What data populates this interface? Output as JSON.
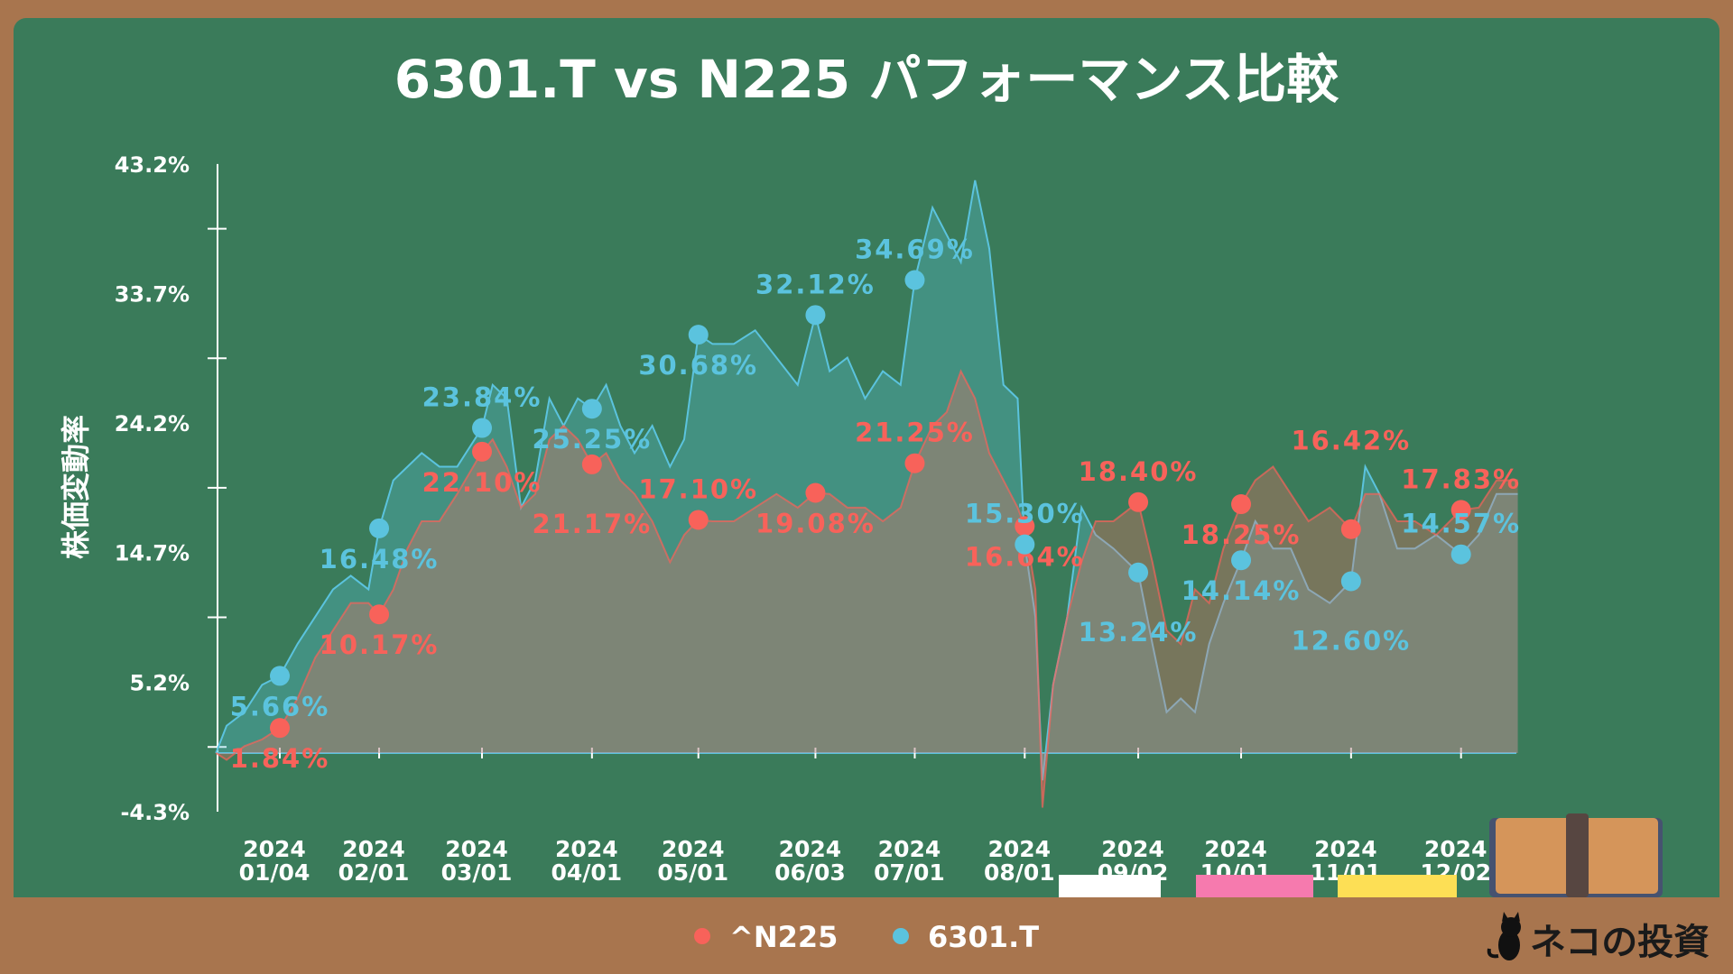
{
  "chart_data": {
    "type": "area",
    "title": "6301.T vs N225 パフォーマンス比較",
    "ylabel": "株価変動率",
    "xlabel": "",
    "ylim": [
      -4.3,
      43.2
    ],
    "y_ticks": [
      "43.2%",
      "33.7%",
      "24.2%",
      "14.7%",
      "5.2%",
      "-4.3%"
    ],
    "y_tick_values": [
      43.2,
      33.7,
      24.2,
      14.7,
      5.2,
      -4.3
    ],
    "x_ticks": [
      {
        "day": 0,
        "year": "2024",
        "md": "01/04"
      },
      {
        "day": 28,
        "year": "2024",
        "md": "02/01"
      },
      {
        "day": 57,
        "year": "2024",
        "md": "03/01"
      },
      {
        "day": 88,
        "year": "2024",
        "md": "04/01"
      },
      {
        "day": 118,
        "year": "2024",
        "md": "05/01"
      },
      {
        "day": 151,
        "year": "2024",
        "md": "06/03"
      },
      {
        "day": 179,
        "year": "2024",
        "md": "07/01"
      },
      {
        "day": 210,
        "year": "2024",
        "md": "08/01"
      },
      {
        "day": 242,
        "year": "2024",
        "md": "09/02"
      },
      {
        "day": 271,
        "year": "2024",
        "md": "10/01"
      },
      {
        "day": 302,
        "year": "2024",
        "md": "11/01"
      },
      {
        "day": 333,
        "year": "2024",
        "md": "12/02"
      }
    ],
    "x_unit": "days since 2024/01/04",
    "legend_position": "bottom",
    "series": [
      {
        "name": "^N225",
        "color": "#F8625A",
        "markers": [
          1.84,
          10.17,
          22.1,
          21.17,
          17.1,
          19.08,
          21.25,
          16.64,
          18.4,
          18.25,
          16.42,
          17.83
        ],
        "marker_labels": [
          "1.84%",
          "10.17%",
          "22.10%",
          "21.17%",
          "17.10%",
          "19.08%",
          "21.25%",
          "16.64%",
          "18.40%",
          "18.25%",
          "16.42%",
          "17.83%"
        ],
        "points": [
          [
            -18,
            0
          ],
          [
            -15,
            -0.5
          ],
          [
            -10,
            0.5
          ],
          [
            -5,
            1
          ],
          [
            0,
            1.84
          ],
          [
            5,
            4
          ],
          [
            10,
            7
          ],
          [
            15,
            9
          ],
          [
            20,
            11
          ],
          [
            25,
            11
          ],
          [
            28,
            10.17
          ],
          [
            32,
            12
          ],
          [
            36,
            15
          ],
          [
            40,
            17
          ],
          [
            45,
            17
          ],
          [
            50,
            19
          ],
          [
            57,
            22.1
          ],
          [
            60,
            23
          ],
          [
            64,
            21
          ],
          [
            68,
            18
          ],
          [
            72,
            19
          ],
          [
            76,
            23
          ],
          [
            80,
            24
          ],
          [
            84,
            23
          ],
          [
            88,
            21.17
          ],
          [
            92,
            22
          ],
          [
            96,
            20
          ],
          [
            100,
            19
          ],
          [
            105,
            17
          ],
          [
            110,
            14
          ],
          [
            114,
            16
          ],
          [
            118,
            17.1
          ],
          [
            122,
            17
          ],
          [
            128,
            17
          ],
          [
            134,
            18
          ],
          [
            140,
            19
          ],
          [
            146,
            18
          ],
          [
            151,
            19.08
          ],
          [
            155,
            19
          ],
          [
            160,
            18
          ],
          [
            165,
            18
          ],
          [
            170,
            17
          ],
          [
            175,
            18
          ],
          [
            179,
            21.25
          ],
          [
            184,
            24
          ],
          [
            188,
            25
          ],
          [
            192,
            28
          ],
          [
            196,
            26
          ],
          [
            200,
            22
          ],
          [
            204,
            20
          ],
          [
            208,
            18
          ],
          [
            210,
            16.64
          ],
          [
            213,
            12
          ],
          [
            215,
            -4
          ],
          [
            218,
            5
          ],
          [
            222,
            10
          ],
          [
            226,
            14
          ],
          [
            230,
            17
          ],
          [
            235,
            17
          ],
          [
            242,
            18.4
          ],
          [
            246,
            14
          ],
          [
            250,
            9
          ],
          [
            254,
            8
          ],
          [
            258,
            12
          ],
          [
            262,
            11
          ],
          [
            266,
            15
          ],
          [
            271,
            18.25
          ],
          [
            275,
            20
          ],
          [
            280,
            21
          ],
          [
            285,
            19
          ],
          [
            290,
            17
          ],
          [
            296,
            18
          ],
          [
            302,
            16.42
          ],
          [
            306,
            19
          ],
          [
            310,
            19
          ],
          [
            315,
            17
          ],
          [
            320,
            17
          ],
          [
            326,
            16
          ],
          [
            333,
            17.83
          ],
          [
            338,
            18
          ],
          [
            343,
            20
          ],
          [
            349,
            20
          ]
        ]
      },
      {
        "name": "6301.T",
        "color": "#5BC3DE",
        "markers": [
          5.66,
          16.48,
          23.84,
          25.25,
          30.68,
          32.12,
          34.69,
          15.3,
          13.24,
          14.14,
          12.6,
          14.57
        ],
        "marker_labels": [
          "5.66%",
          "16.48%",
          "23.84%",
          "25.25%",
          "30.68%",
          "32.12%",
          "34.69%",
          "15.30%",
          "13.24%",
          "14.14%",
          "12.60%",
          "14.57%"
        ],
        "points": [
          [
            -18,
            0
          ],
          [
            -15,
            2
          ],
          [
            -10,
            3
          ],
          [
            -5,
            5
          ],
          [
            0,
            5.66
          ],
          [
            5,
            8
          ],
          [
            10,
            10
          ],
          [
            15,
            12
          ],
          [
            20,
            13
          ],
          [
            25,
            12
          ],
          [
            28,
            16.48
          ],
          [
            32,
            20
          ],
          [
            36,
            21
          ],
          [
            40,
            22
          ],
          [
            45,
            21
          ],
          [
            50,
            21
          ],
          [
            57,
            23.84
          ],
          [
            60,
            27
          ],
          [
            64,
            26
          ],
          [
            68,
            18
          ],
          [
            72,
            20
          ],
          [
            76,
            26
          ],
          [
            80,
            24
          ],
          [
            84,
            26
          ],
          [
            88,
            25.25
          ],
          [
            92,
            27
          ],
          [
            96,
            24
          ],
          [
            100,
            22
          ],
          [
            105,
            24
          ],
          [
            110,
            21
          ],
          [
            114,
            23
          ],
          [
            118,
            30.68
          ],
          [
            122,
            30
          ],
          [
            128,
            30
          ],
          [
            134,
            31
          ],
          [
            140,
            29
          ],
          [
            146,
            27
          ],
          [
            151,
            32.12
          ],
          [
            155,
            28
          ],
          [
            160,
            29
          ],
          [
            165,
            26
          ],
          [
            170,
            28
          ],
          [
            175,
            27
          ],
          [
            179,
            34.69
          ],
          [
            184,
            40
          ],
          [
            188,
            38
          ],
          [
            192,
            36
          ],
          [
            196,
            42
          ],
          [
            200,
            37
          ],
          [
            204,
            27
          ],
          [
            208,
            26
          ],
          [
            210,
            15.3
          ],
          [
            213,
            10
          ],
          [
            215,
            -2
          ],
          [
            218,
            5
          ],
          [
            222,
            10
          ],
          [
            226,
            18
          ],
          [
            230,
            16
          ],
          [
            235,
            15
          ],
          [
            242,
            13.24
          ],
          [
            246,
            8
          ],
          [
            250,
            3
          ],
          [
            254,
            4
          ],
          [
            258,
            3
          ],
          [
            262,
            8
          ],
          [
            266,
            11
          ],
          [
            271,
            14.14
          ],
          [
            275,
            17
          ],
          [
            280,
            15
          ],
          [
            285,
            15
          ],
          [
            290,
            12
          ],
          [
            296,
            11
          ],
          [
            302,
            12.6
          ],
          [
            306,
            21
          ],
          [
            310,
            19
          ],
          [
            315,
            15
          ],
          [
            320,
            15
          ],
          [
            326,
            16
          ],
          [
            333,
            14.57
          ],
          [
            338,
            16
          ],
          [
            343,
            19
          ],
          [
            349,
            19
          ]
        ]
      }
    ]
  },
  "legend": [
    "^N225",
    "6301.T"
  ],
  "logo": "ネコの投資"
}
